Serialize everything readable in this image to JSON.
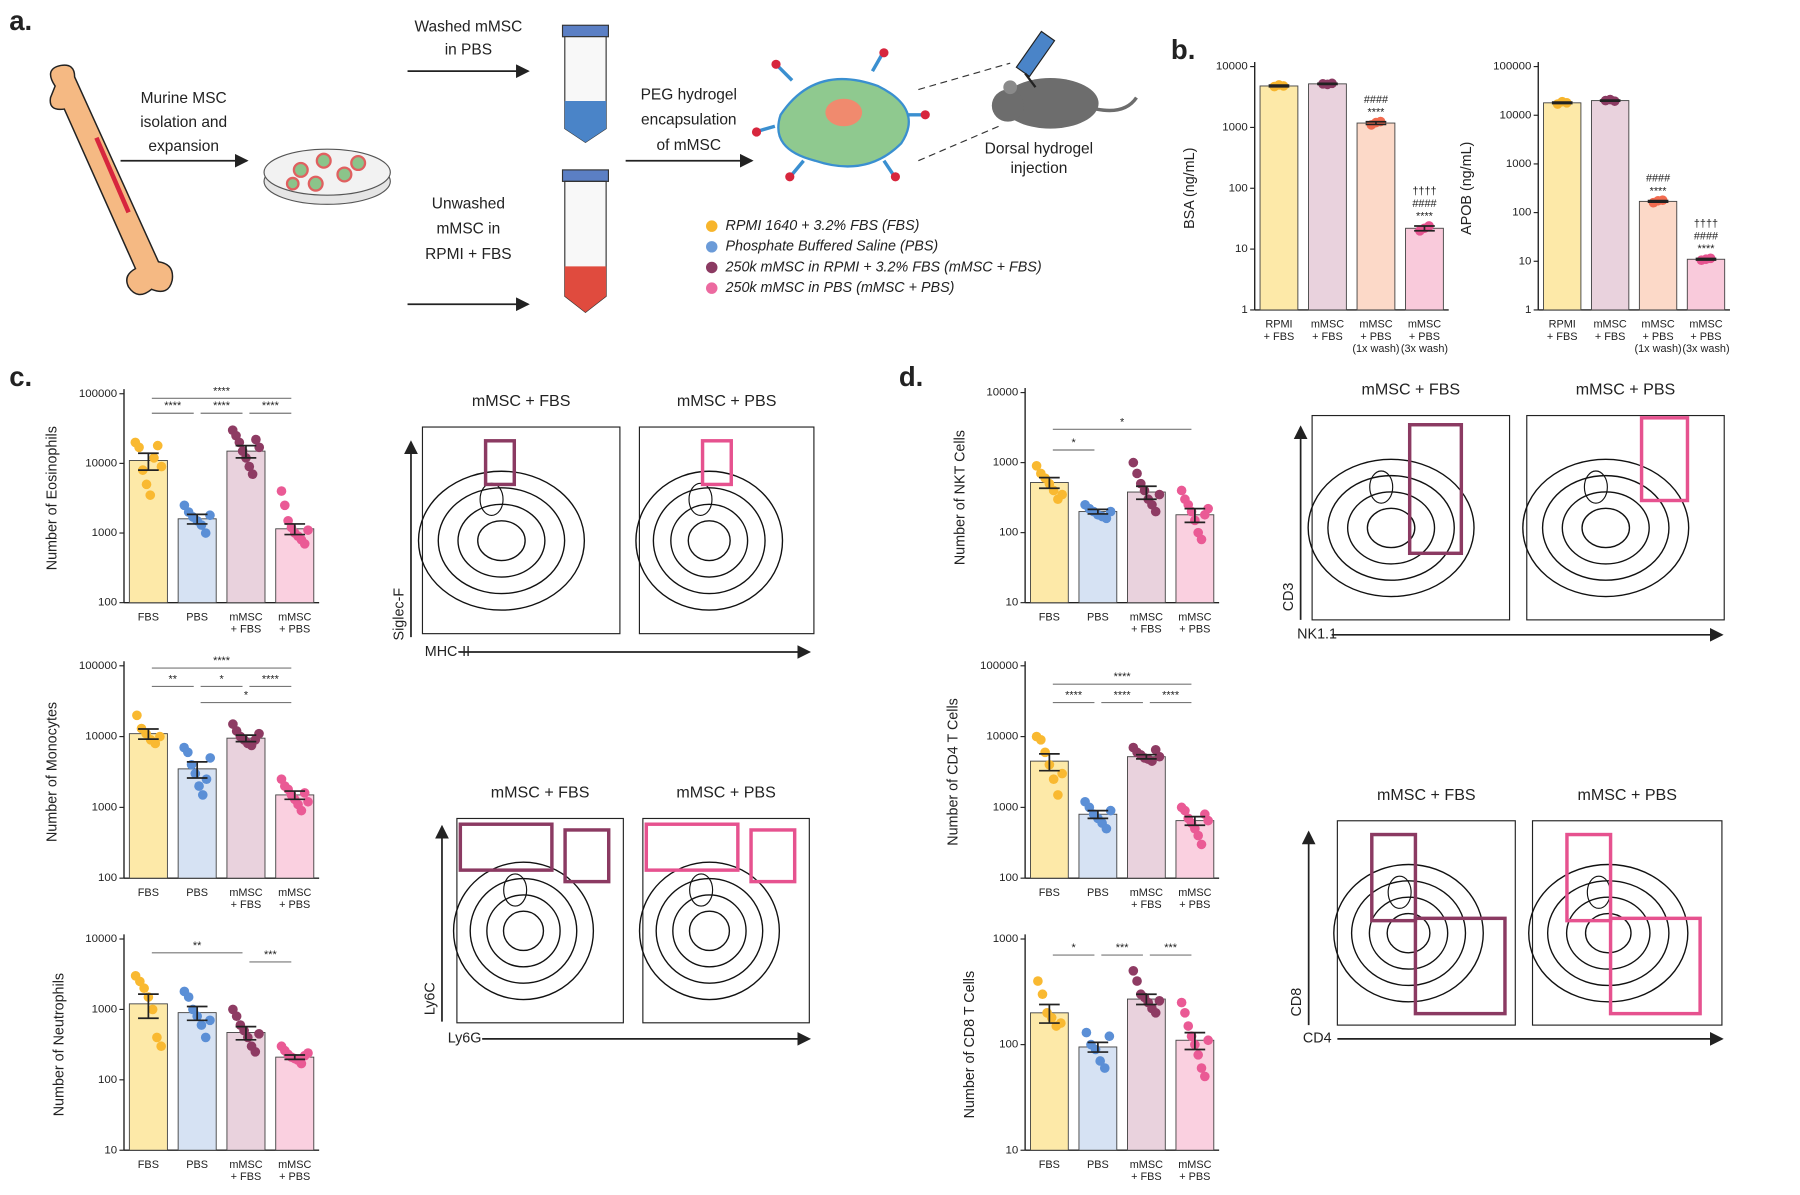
{
  "figure": {
    "panels": {
      "a": "a.",
      "b": "b.",
      "c": "c.",
      "d": "d."
    },
    "schematic": {
      "isolation": [
        "Murine MSC",
        "isolation and",
        "expansion"
      ],
      "washed": [
        "Washed mMSC",
        "in PBS"
      ],
      "unwashed": [
        "Unwashed",
        "mMSC in",
        "RPMI + FBS"
      ],
      "encapsulation": [
        "PEG hydrogel",
        "encapsulation",
        "of mMSC"
      ],
      "injection": [
        "Dorsal hydrogel",
        "injection"
      ],
      "legend": [
        {
          "name": "RPMI 1640 + 3.2% FBS (FBS)",
          "color": "#f7b52c"
        },
        {
          "name": "Phosphate Buffered Saline (PBS)",
          "color": "#6b9bd8"
        },
        {
          "name": "250k mMSC in RPMI + 3.2% FBS (mMSC + FBS)",
          "color": "#8b3a62"
        },
        {
          "name": "250k mMSC in PBS (mMSC + PBS)",
          "color": "#ec6aa0"
        }
      ]
    },
    "flow": [
      {
        "titles": [
          "mMSC + FBS",
          "mMSC + PBS"
        ],
        "ylabel": "Siglec-F",
        "xlabel": "MHC-II"
      },
      {
        "titles": [
          "mMSC + FBS",
          "mMSC + PBS"
        ],
        "ylabel": "Ly6C",
        "xlabel": "Ly6G"
      },
      {
        "titles": [
          "mMSC + FBS",
          "mMSC + PBS"
        ],
        "ylabel": "CD3",
        "xlabel": "NK1.1"
      },
      {
        "titles": [
          "mMSC + FBS",
          "mMSC + PBS"
        ],
        "ylabel": "CD8",
        "xlabel": "CD4"
      }
    ]
  },
  "chart_data": [
    {
      "type": "bar",
      "ylabel": "BSA (ng/mL)",
      "categories": [
        [
          "RPMI",
          "+ FBS"
        ],
        [
          "mMSC",
          "+ FBS"
        ],
        [
          "mMSC",
          "+ PBS",
          "(1x wash)"
        ],
        [
          "mMSC",
          "+ PBS",
          "(3x wash)"
        ]
      ],
      "values": [
        4800,
        5200,
        1180,
        22
      ],
      "errors": [
        150,
        100,
        60,
        2
      ],
      "points": [
        [
          4700,
          5000,
          4800
        ],
        [
          5200,
          5100,
          5300
        ],
        [
          1100,
          1200,
          1250
        ],
        [
          20,
          22,
          24
        ]
      ],
      "annotations": [
        [],
        [],
        [
          "####",
          "****"
        ],
        [
          "††††",
          "####",
          "****"
        ]
      ],
      "ylim": [
        1,
        10000
      ],
      "yticks": [
        1,
        10,
        100,
        1000,
        10000
      ],
      "log": true,
      "colors": [
        "#fde9a8",
        "#e9d2dd",
        "#fcd9c8",
        "#f9cadb"
      ],
      "point_colors": [
        "#f7b52c",
        "#8b3a62",
        "#f26b4f",
        "#e6528f"
      ]
    },
    {
      "type": "bar",
      "ylabel": "APOB (ng/mL)",
      "categories": [
        [
          "RPMI",
          "+ FBS"
        ],
        [
          "mMSC",
          "+ FBS"
        ],
        [
          "mMSC",
          "+ PBS",
          "(1x wash)"
        ],
        [
          "mMSC",
          "+ PBS",
          "(3x wash)"
        ]
      ],
      "values": [
        18000,
        20000,
        170,
        11
      ],
      "errors": [
        600,
        500,
        6,
        0.4
      ],
      "points": [
        [
          17000,
          19000,
          18000
        ],
        [
          20000,
          21000,
          19500
        ],
        [
          160,
          175,
          180
        ],
        [
          10.5,
          11,
          11.5
        ]
      ],
      "annotations": [
        [],
        [],
        [
          "####",
          "****"
        ],
        [
          "††††",
          "####",
          "****"
        ]
      ],
      "ylim": [
        1,
        100000
      ],
      "yticks": [
        1,
        10,
        100,
        1000,
        10000,
        100000
      ],
      "log": true,
      "colors": [
        "#fde9a8",
        "#e9d2dd",
        "#fcd9c8",
        "#f9cadb"
      ],
      "point_colors": [
        "#f7b52c",
        "#8b3a62",
        "#f26b4f",
        "#e6528f"
      ]
    },
    {
      "type": "bar",
      "ylabel": "Number of Eosinophils",
      "categories": [
        [
          "FBS"
        ],
        [
          "PBS"
        ],
        [
          "mMSC",
          "+ FBS"
        ],
        [
          "mMSC",
          "+ PBS"
        ]
      ],
      "values": [
        11000,
        1600,
        15000,
        1150
      ],
      "errors": [
        3000,
        250,
        3000,
        200
      ],
      "points": [
        [
          20000,
          17000,
          8000,
          5000,
          3500,
          12000,
          18000,
          9000
        ],
        [
          2500,
          2000,
          1700,
          1500,
          1300,
          1000,
          1800
        ],
        [
          30000,
          25000,
          20000,
          15000,
          12000,
          9000,
          7000,
          22000,
          17000
        ],
        [
          4000,
          2500,
          1500,
          1200,
          1000,
          900,
          800,
          700,
          1100
        ]
      ],
      "significance": [
        "****",
        "****",
        "****",
        "****"
      ],
      "ylim": [
        100,
        100000
      ],
      "yticks": [
        100,
        1000,
        10000,
        100000
      ],
      "log": true,
      "colors": [
        "#fde9a8",
        "#d6e2f3",
        "#e9d2dd",
        "#fad0e0"
      ],
      "point_colors": [
        "#f9b931",
        "#5b8fd6",
        "#8e3b63",
        "#ea5a95"
      ]
    },
    {
      "type": "bar",
      "ylabel": "Number of Monocytes",
      "categories": [
        [
          "FBS"
        ],
        [
          "PBS"
        ],
        [
          "mMSC",
          "+ FBS"
        ],
        [
          "mMSC",
          "+ PBS"
        ]
      ],
      "values": [
        11000,
        3500,
        9500,
        1500
      ],
      "errors": [
        1800,
        900,
        1000,
        200
      ],
      "points": [
        [
          20000,
          13000,
          11000,
          9000,
          8000,
          10000
        ],
        [
          7000,
          6000,
          4000,
          3000,
          2000,
          1500,
          2500,
          5000
        ],
        [
          15000,
          12000,
          10000,
          9000,
          8000,
          7500,
          9000,
          11000
        ],
        [
          2500,
          2000,
          1800,
          1500,
          1300,
          1100,
          900,
          1600,
          1200
        ]
      ],
      "significance": [
        "****",
        "**",
        "*",
        "****",
        "*"
      ],
      "ylim": [
        100,
        100000
      ],
      "yticks": [
        100,
        1000,
        10000,
        100000
      ],
      "log": true,
      "colors": [
        "#fde9a8",
        "#d6e2f3",
        "#e9d2dd",
        "#fad0e0"
      ],
      "point_colors": [
        "#f9b931",
        "#5b8fd6",
        "#8e3b63",
        "#ea5a95"
      ]
    },
    {
      "type": "bar",
      "ylabel": "Number of Neutrophils",
      "categories": [
        [
          "FBS"
        ],
        [
          "PBS"
        ],
        [
          "mMSC",
          "+ FBS"
        ],
        [
          "mMSC",
          "+ PBS"
        ]
      ],
      "values": [
        1200,
        900,
        470,
        210
      ],
      "errors": [
        450,
        200,
        100,
        15
      ],
      "points": [
        [
          3000,
          2500,
          2000,
          1500,
          1000,
          400,
          300
        ],
        [
          1800,
          1500,
          1000,
          800,
          600,
          400,
          700
        ],
        [
          1000,
          800,
          600,
          500,
          400,
          300,
          250,
          450
        ],
        [
          300,
          260,
          230,
          210,
          200,
          190,
          170,
          220,
          240
        ]
      ],
      "significance": [
        "**",
        "***"
      ],
      "ylim": [
        10,
        10000
      ],
      "yticks": [
        10,
        100,
        1000,
        10000
      ],
      "log": true,
      "colors": [
        "#fde9a8",
        "#d6e2f3",
        "#e9d2dd",
        "#fad0e0"
      ],
      "point_colors": [
        "#f9b931",
        "#5b8fd6",
        "#8e3b63",
        "#ea5a95"
      ]
    },
    {
      "type": "bar",
      "ylabel": "Number of NKT Cells",
      "categories": [
        [
          "FBS"
        ],
        [
          "PBS"
        ],
        [
          "mMSC",
          "+ FBS"
        ],
        [
          "mMSC",
          "+ PBS"
        ]
      ],
      "values": [
        520,
        200,
        380,
        180
      ],
      "errors": [
        90,
        15,
        80,
        40
      ],
      "points": [
        [
          900,
          700,
          600,
          500,
          400,
          300,
          350
        ],
        [
          250,
          220,
          200,
          180,
          170,
          160,
          200
        ],
        [
          1000,
          700,
          500,
          400,
          300,
          250,
          200,
          350
        ],
        [
          400,
          300,
          250,
          200,
          150,
          100,
          80,
          180,
          220
        ]
      ],
      "significance": [
        "*",
        "*"
      ],
      "ylim": [
        10,
        10000
      ],
      "yticks": [
        10,
        100,
        1000,
        10000
      ],
      "log": true,
      "colors": [
        "#fde9a8",
        "#d6e2f3",
        "#e9d2dd",
        "#fad0e0"
      ],
      "point_colors": [
        "#f9b931",
        "#5b8fd6",
        "#8e3b63",
        "#ea5a95"
      ]
    },
    {
      "type": "bar",
      "ylabel": "Number of CD4 T Cells",
      "categories": [
        [
          "FBS"
        ],
        [
          "PBS"
        ],
        [
          "mMSC",
          "+ FBS"
        ],
        [
          "mMSC",
          "+ PBS"
        ]
      ],
      "values": [
        4500,
        800,
        5200,
        650
      ],
      "errors": [
        1200,
        100,
        350,
        90
      ],
      "points": [
        [
          10000,
          9000,
          6000,
          4000,
          2500,
          1500,
          3000
        ],
        [
          1200,
          1000,
          800,
          700,
          600,
          500,
          900
        ],
        [
          7000,
          6000,
          5500,
          5000,
          4800,
          4500,
          6500,
          5200
        ],
        [
          1000,
          900,
          700,
          600,
          500,
          400,
          300,
          800,
          650
        ]
      ],
      "significance": [
        "****",
        "****",
        "****",
        "****"
      ],
      "ylim": [
        100,
        100000
      ],
      "yticks": [
        100,
        1000,
        10000,
        100000
      ],
      "log": true,
      "colors": [
        "#fde9a8",
        "#d6e2f3",
        "#e9d2dd",
        "#fad0e0"
      ],
      "point_colors": [
        "#f9b931",
        "#5b8fd6",
        "#8e3b63",
        "#ea5a95"
      ]
    },
    {
      "type": "bar",
      "ylabel": "Number of CD8 T Cells",
      "categories": [
        [
          "FBS"
        ],
        [
          "PBS"
        ],
        [
          "mMSC",
          "+ FBS"
        ],
        [
          "mMSC",
          "+ PBS"
        ]
      ],
      "values": [
        200,
        95,
        270,
        110
      ],
      "errors": [
        40,
        10,
        30,
        20
      ],
      "points": [
        [
          400,
          300,
          200,
          180,
          150,
          160
        ],
        [
          130,
          100,
          90,
          70,
          60,
          120
        ],
        [
          500,
          400,
          300,
          280,
          250,
          220,
          200,
          260
        ],
        [
          250,
          200,
          150,
          120,
          100,
          80,
          60,
          50,
          110
        ]
      ],
      "significance": [
        "*",
        "***",
        "***"
      ],
      "ylim": [
        10,
        1000
      ],
      "yticks": [
        10,
        100,
        1000
      ],
      "log": true,
      "colors": [
        "#fde9a8",
        "#d6e2f3",
        "#e9d2dd",
        "#fad0e0"
      ],
      "point_colors": [
        "#f9b931",
        "#5b8fd6",
        "#8e3b63",
        "#ea5a95"
      ]
    }
  ]
}
